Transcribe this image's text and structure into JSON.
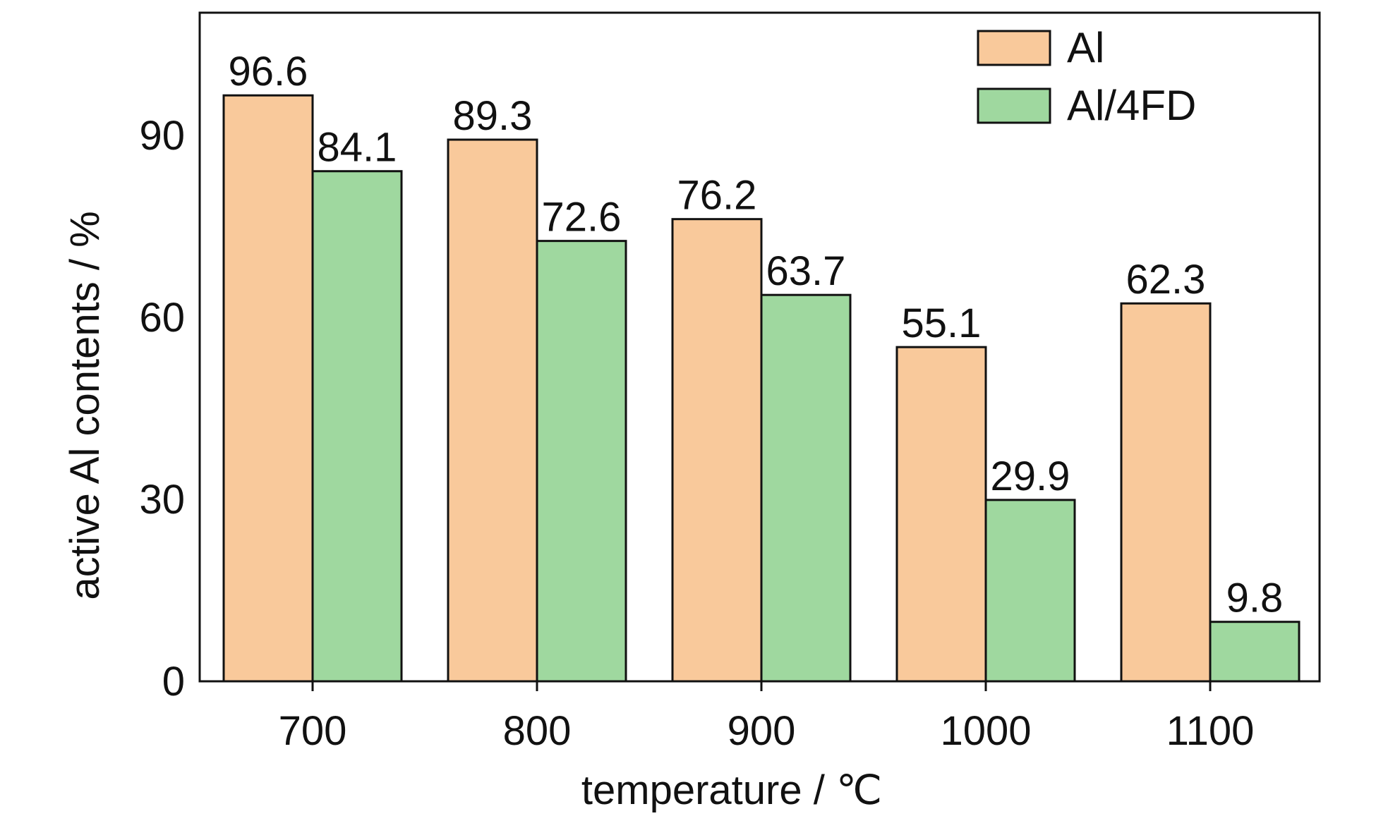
{
  "chart_data": {
    "type": "bar",
    "title": "",
    "xlabel": "temperature / ℃",
    "ylabel": "active Al contents / %",
    "categories": [
      "700",
      "800",
      "900",
      "1000",
      "1100"
    ],
    "series": [
      {
        "name": "Al",
        "color": "#f9c99b",
        "values": [
          96.6,
          89.3,
          76.2,
          55.1,
          62.3
        ]
      },
      {
        "name": "Al/4FD",
        "color": "#9fd89f",
        "values": [
          84.1,
          72.6,
          63.7,
          29.9,
          9.8
        ]
      }
    ],
    "ylim": [
      0,
      110
    ],
    "yticks": [
      "0",
      "30",
      "60",
      "90"
    ],
    "data_labels": true,
    "grid": false,
    "legend_position": "top-right"
  }
}
